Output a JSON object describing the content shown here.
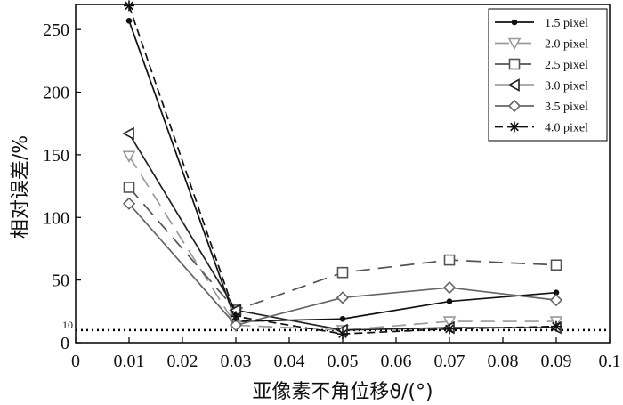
{
  "chart_data": {
    "type": "line",
    "title": "",
    "xlabel": "亚像素不角位移ϑ/(°)",
    "ylabel": "相对误差/%",
    "xlim": [
      0,
      0.1
    ],
    "ylim": [
      0,
      270
    ],
    "x_ticks": [
      "0",
      "0.01",
      "0.02",
      "0.03",
      "0.04",
      "0.05",
      "0.06",
      "0.07",
      "0.08",
      "0.09",
      "0.1"
    ],
    "y_ticks": [
      "0",
      "50",
      "100",
      "150",
      "200",
      "250"
    ],
    "reference_line": {
      "value": 10,
      "label": "10",
      "style": "dotted"
    },
    "grid": false,
    "legend_position": "top-right",
    "x": [
      0.01,
      0.03,
      0.05,
      0.07,
      0.09
    ],
    "series": [
      {
        "name": "1.5 pixel",
        "values": [
          257,
          17,
          19,
          33,
          40
        ],
        "color": "#111111",
        "dash": "solid",
        "marker": "dot"
      },
      {
        "name": "2.0 pixel",
        "values": [
          149,
          14,
          10,
          17,
          17
        ],
        "color": "#9a9a9a",
        "dash": "long-dash",
        "marker": "triangle-down"
      },
      {
        "name": "2.5 pixel",
        "values": [
          124,
          26,
          56,
          66,
          62
        ],
        "color": "#555555",
        "dash": "long-dash",
        "marker": "square"
      },
      {
        "name": "3.0 pixel",
        "values": [
          167,
          26,
          10,
          12,
          12
        ],
        "color": "#222222",
        "dash": "solid",
        "marker": "triangle-left"
      },
      {
        "name": "3.5 pixel",
        "values": [
          111,
          14,
          36,
          44,
          34
        ],
        "color": "#666666",
        "dash": "solid",
        "marker": "diamond"
      },
      {
        "name": "4.0 pixel",
        "values": [
          269,
          21,
          7,
          11,
          13
        ],
        "color": "#111111",
        "dash": "dash",
        "marker": "star"
      }
    ]
  }
}
